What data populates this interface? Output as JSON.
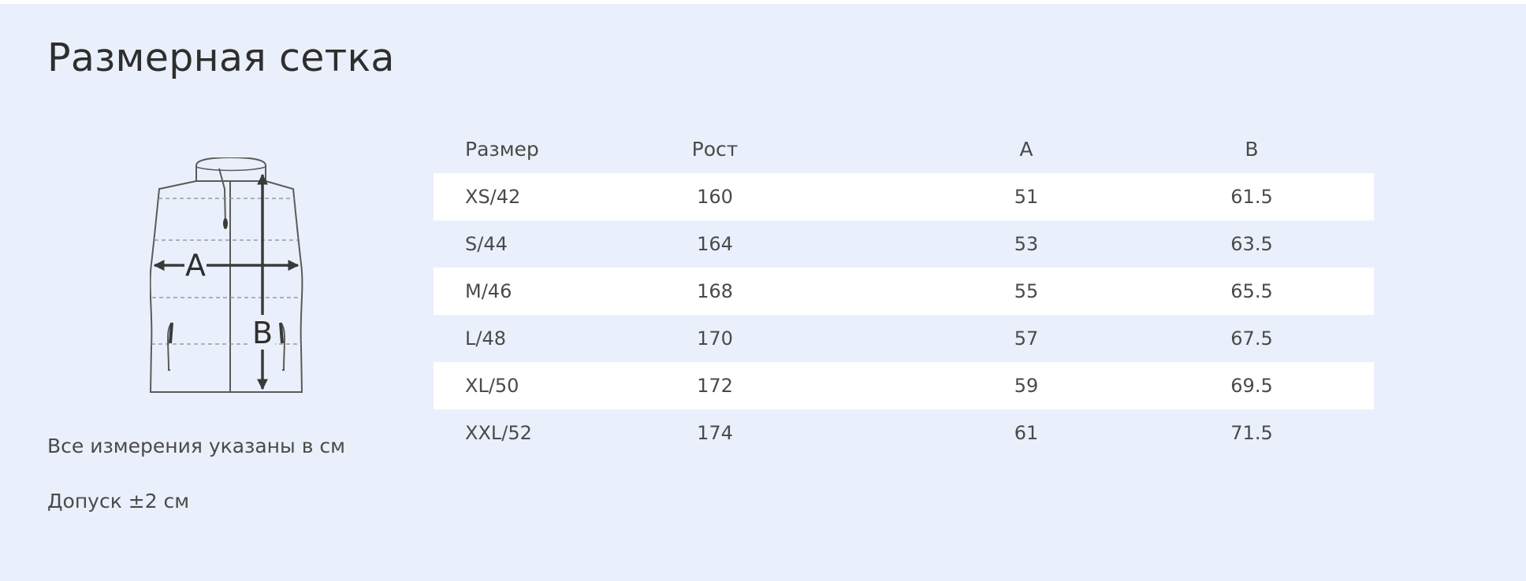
{
  "title": "Размерная сетка",
  "diagram": {
    "label_a": "A",
    "label_b": "B"
  },
  "notes": {
    "units": "Все измерения указаны в см",
    "tolerance": "Допуск ±2 см"
  },
  "table": {
    "headers": [
      "Размер",
      "Рост",
      "A",
      "B"
    ],
    "rows": [
      [
        "XS/42",
        "160",
        "51",
        "61.5"
      ],
      [
        "S/44",
        "164",
        "53",
        "63.5"
      ],
      [
        "M/46",
        "168",
        "55",
        "65.5"
      ],
      [
        "L/48",
        "170",
        "57",
        "67.5"
      ],
      [
        "XL/50",
        "172",
        "59",
        "69.5"
      ],
      [
        "XXL/52",
        "174",
        "61",
        "71.5"
      ]
    ]
  },
  "colors": {
    "panel_bg": "#eaf0fb",
    "row_highlight": "#ffffff",
    "text": "#4a4a4a"
  }
}
